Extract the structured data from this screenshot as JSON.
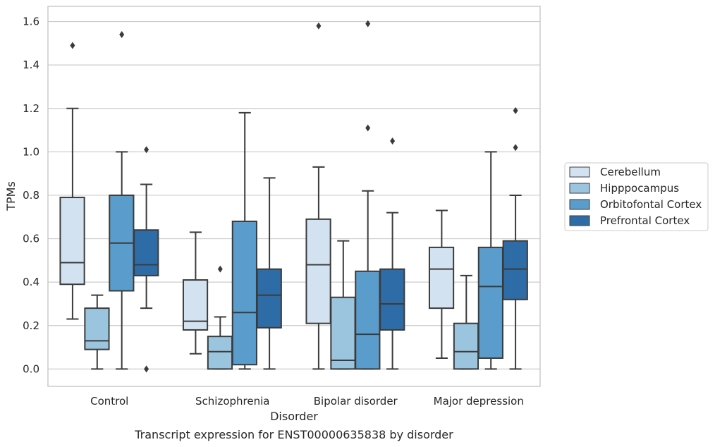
{
  "chart_data": {
    "type": "box",
    "xlabel": "Disorder",
    "ylabel": "TPMs",
    "caption": "Transcript expression for ENST00000635838 by disorder",
    "ylim": [
      -0.08,
      1.67
    ],
    "yticks": [
      "0.0",
      "0.2",
      "0.4",
      "0.6",
      "0.8",
      "1.0",
      "1.2",
      "1.4",
      "1.6"
    ],
    "grid": "horizontal",
    "legend_position": "right",
    "categories": [
      "Control",
      "Schizophrenia",
      "Bipolar disorder",
      "Major depression"
    ],
    "series": [
      {
        "name": "Cerebellum",
        "color": "#d3e2f1",
        "boxes": [
          {
            "low": 0.23,
            "q1": 0.39,
            "median": 0.49,
            "q3": 0.79,
            "high": 1.2,
            "outliers": [
              1.49
            ]
          },
          {
            "low": 0.07,
            "q1": 0.18,
            "median": 0.22,
            "q3": 0.41,
            "high": 0.63,
            "outliers": []
          },
          {
            "low": 0.0,
            "q1": 0.21,
            "median": 0.48,
            "q3": 0.69,
            "high": 0.93,
            "outliers": [
              1.58
            ]
          },
          {
            "low": 0.05,
            "q1": 0.28,
            "median": 0.46,
            "q3": 0.56,
            "high": 0.73,
            "outliers": []
          }
        ]
      },
      {
        "name": "Hipppocampus",
        "color": "#9bc5df",
        "boxes": [
          {
            "low": 0.0,
            "q1": 0.09,
            "median": 0.13,
            "q3": 0.28,
            "high": 0.34,
            "outliers": []
          },
          {
            "low": 0.0,
            "q1": 0.0,
            "median": 0.08,
            "q3": 0.15,
            "high": 0.24,
            "outliers": [
              0.46
            ]
          },
          {
            "low": 0.0,
            "q1": 0.0,
            "median": 0.04,
            "q3": 0.33,
            "high": 0.59,
            "outliers": []
          },
          {
            "low": 0.0,
            "q1": 0.0,
            "median": 0.08,
            "q3": 0.21,
            "high": 0.43,
            "outliers": []
          }
        ]
      },
      {
        "name": "Orbitofontal Cortex",
        "color": "#5a9ccb",
        "boxes": [
          {
            "low": 0.0,
            "q1": 0.36,
            "median": 0.58,
            "q3": 0.8,
            "high": 1.0,
            "outliers": [
              1.54
            ]
          },
          {
            "low": 0.0,
            "q1": 0.02,
            "median": 0.26,
            "q3": 0.68,
            "high": 1.18,
            "outliers": []
          },
          {
            "low": 0.0,
            "q1": 0.0,
            "median": 0.16,
            "q3": 0.45,
            "high": 0.82,
            "outliers": [
              1.11,
              1.59
            ]
          },
          {
            "low": 0.0,
            "q1": 0.05,
            "median": 0.38,
            "q3": 0.56,
            "high": 1.0,
            "outliers": []
          }
        ]
      },
      {
        "name": "Prefrontal Cortex",
        "color": "#2e6ca8",
        "boxes": [
          {
            "low": 0.28,
            "q1": 0.43,
            "median": 0.48,
            "q3": 0.64,
            "high": 0.85,
            "outliers": [
              1.01,
              0.0
            ]
          },
          {
            "low": 0.0,
            "q1": 0.19,
            "median": 0.34,
            "q3": 0.46,
            "high": 0.88,
            "outliers": []
          },
          {
            "low": 0.0,
            "q1": 0.18,
            "median": 0.3,
            "q3": 0.46,
            "high": 0.72,
            "outliers": [
              1.05
            ]
          },
          {
            "low": 0.0,
            "q1": 0.32,
            "median": 0.46,
            "q3": 0.59,
            "high": 0.8,
            "outliers": [
              1.02,
              1.19
            ]
          }
        ]
      }
    ]
  }
}
